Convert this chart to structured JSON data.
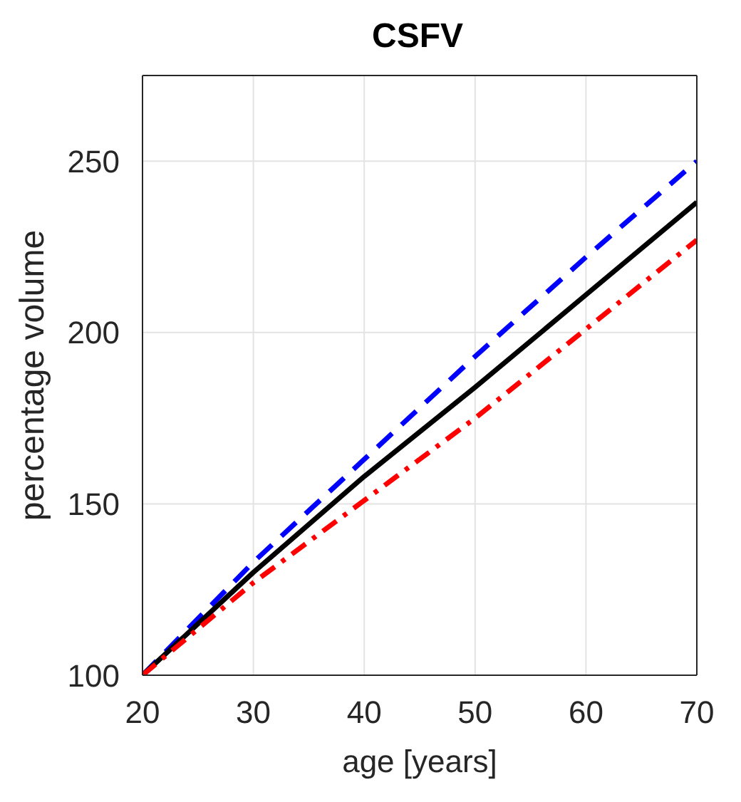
{
  "chart_data": {
    "type": "line",
    "title": "CSFV",
    "xlabel": "age [years]",
    "ylabel": "percentage volume",
    "x": [
      20,
      30,
      40,
      50,
      60,
      70
    ],
    "series": [
      {
        "color": "#0000ff",
        "line_style": "dashed",
        "values": [
          100,
          133,
          163,
          193,
          222,
          250
        ]
      },
      {
        "color": "#000000",
        "line_style": "solid",
        "values": [
          100,
          130,
          158,
          184,
          211,
          238
        ]
      },
      {
        "color": "#ff0000",
        "line_style": "dashdot",
        "values": [
          100,
          127,
          151,
          175,
          201,
          227
        ]
      }
    ],
    "xlim": [
      20,
      70
    ],
    "xticks": [
      20,
      30,
      40,
      50,
      60,
      70
    ],
    "ylim": [
      100,
      275
    ],
    "yticks": [
      100,
      150,
      200,
      250
    ],
    "grid": true,
    "legend": false,
    "marker": "none"
  }
}
